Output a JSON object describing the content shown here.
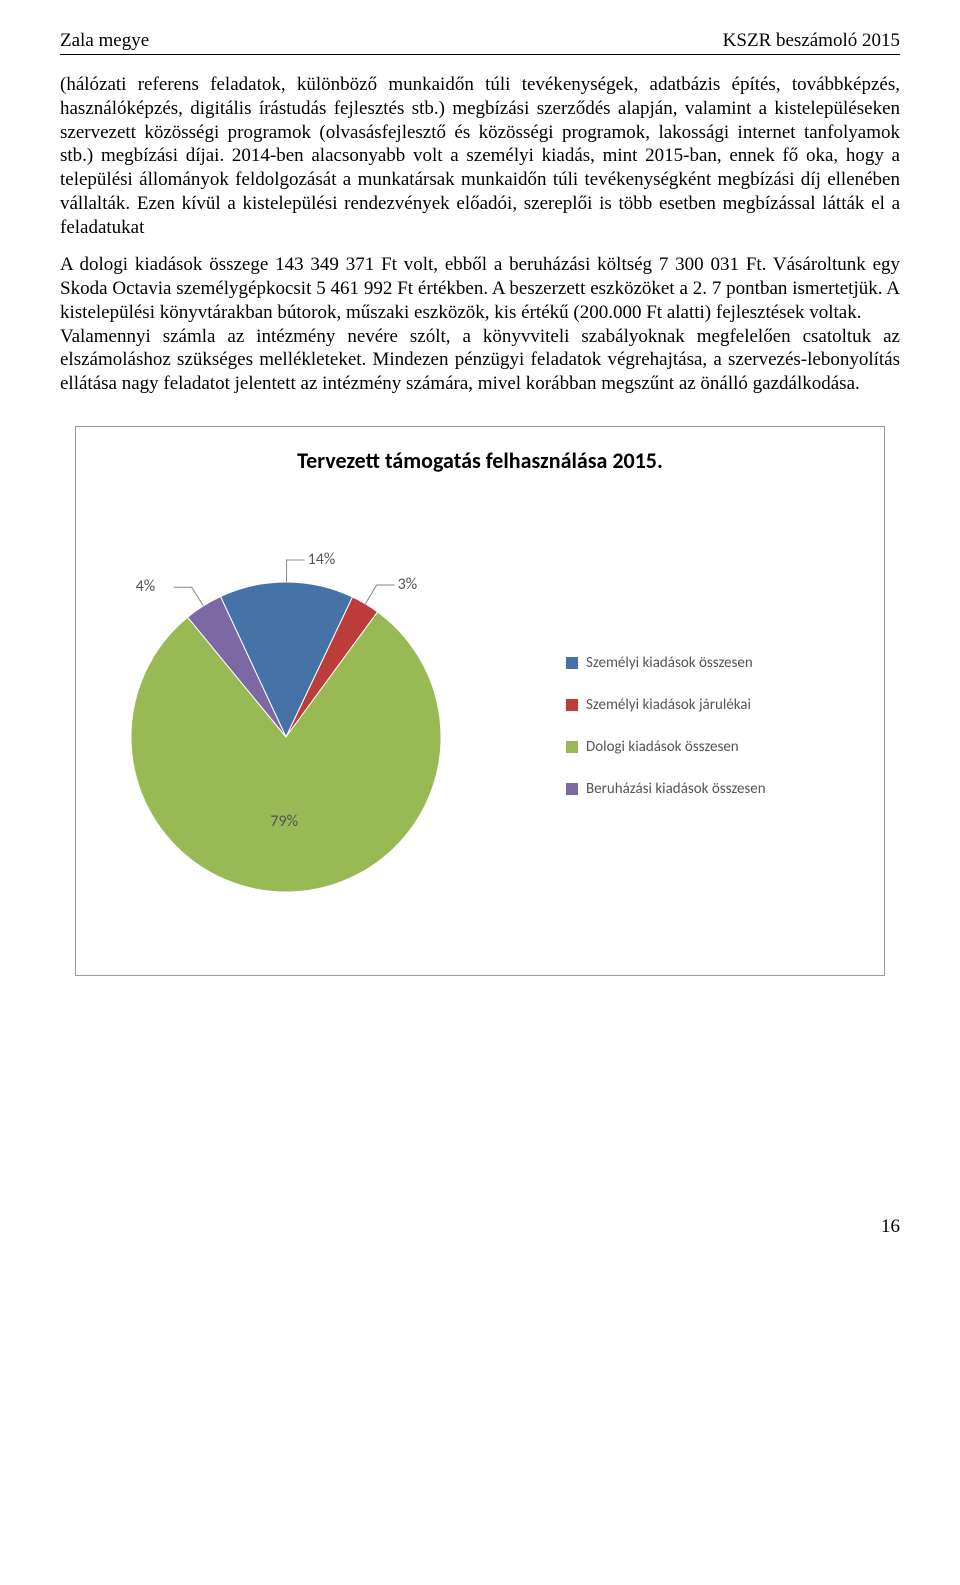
{
  "header": {
    "left": "Zala megye",
    "right": "KSZR beszámoló 2015"
  },
  "paragraphs": {
    "p1": "(hálózati referens feladatok, különböző munkaidőn túli tevékenységek, adatbázis építés, továbbképzés, használóképzés, digitális írástudás fejlesztés stb.) megbízási szerződés alapján, valamint a kistelepüléseken szervezett közösségi programok (olvasásfejlesztő és közösségi programok, lakossági internet tanfolyamok stb.) megbízási díjai. 2014-ben alacsonyabb volt a személyi kiadás, mint 2015-ban, ennek fő oka, hogy a települési állományok feldolgozását a munkatársak munkaidőn túli tevékenységként megbízási díj ellenében vállalták. Ezen kívül a kistelepülési rendezvények előadói, szereplői is több esetben megbízással látták el a feladatukat",
    "p2": "A dologi kiadások összege 143 349 371 Ft volt, ebből a beruházási költség 7 300 031 Ft. Vásároltunk egy Skoda Octavia személygépkocsit 5 461 992 Ft értékben. A beszerzett eszközöket a 2. 7 pontban ismertetjük. A kistelepülési könyvtárakban bútorok, műszaki eszközök, kis értékű (200.000 Ft alatti) fejlesztések voltak.",
    "p3": "Valamennyi számla az intézmény nevére szólt, a könyvviteli szabályoknak megfelelően csatoltuk az elszámoláshoz szükséges mellékleteket. Mindezen pénzügyi feladatok végrehajtása, a szervezés-lebonyolítás ellátása nagy feladatot jelentett az intézmény számára, mivel korábban megszűnt az önálló gazdálkodása."
  },
  "chart": {
    "title": "Tervezett támogatás felhasználása 2015.",
    "type": "pie",
    "slices": [
      {
        "label": "Személyi kiadások összesen",
        "value": 14,
        "color": "#4573a7",
        "pct_label": "14%"
      },
      {
        "label": "Személyi kiadások járulékai",
        "value": 3,
        "color": "#bc3d3a",
        "pct_label": "3%"
      },
      {
        "label": "Dologi kiadások összesen",
        "value": 79,
        "color": "#98b954",
        "pct_label": "79%"
      },
      {
        "label": "Beruházási kiadások összesen",
        "value": 4,
        "color": "#7c68a2",
        "pct_label": "4%"
      }
    ],
    "title_fontsize": 22,
    "label_fontsize": 16,
    "legend_fontsize": 15,
    "background_color": "#ffffff",
    "border_color": "#999999",
    "label_color": "#555555",
    "pie_radius": 155,
    "start_angle_deg": -115
  },
  "page_number": "16"
}
